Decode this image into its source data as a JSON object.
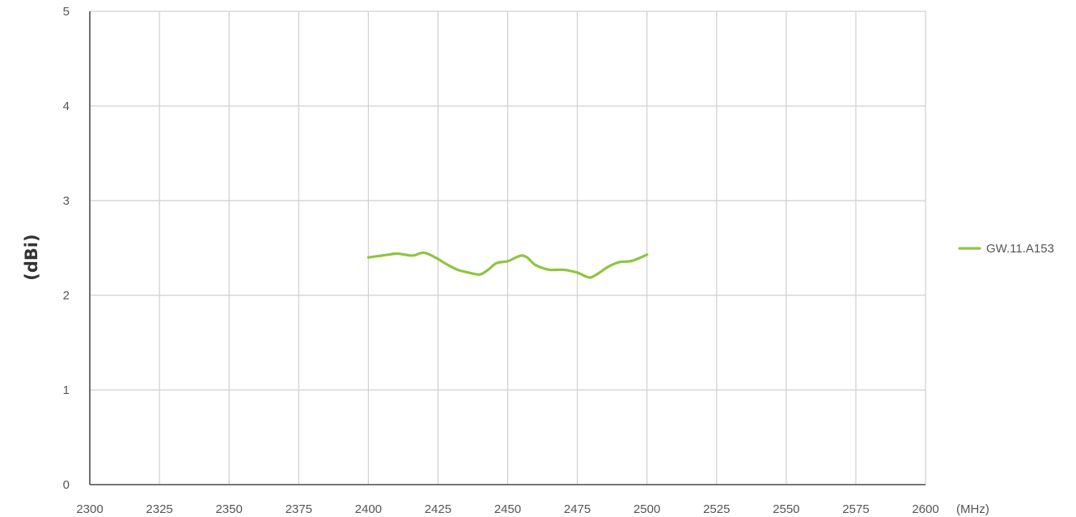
{
  "chart_data": {
    "type": "line",
    "title": "",
    "xlabel": "",
    "x_unit_label": "(MHz)",
    "ylabel": "(dBi)",
    "xlim": [
      2300,
      2600
    ],
    "ylim": [
      0,
      5
    ],
    "x_ticks": [
      2300,
      2325,
      2350,
      2375,
      2400,
      2425,
      2450,
      2475,
      2500,
      2525,
      2550,
      2575,
      2600
    ],
    "y_ticks": [
      0,
      1,
      2,
      3,
      4,
      5
    ],
    "grid": true,
    "legend_position": "right",
    "series": [
      {
        "name": "GW.11.A153",
        "color": "#8DC63F",
        "x": [
          2400,
          2405,
          2410,
          2413,
          2416,
          2420,
          2424,
          2428,
          2432,
          2436,
          2440,
          2443,
          2446,
          2450,
          2453,
          2455,
          2457,
          2460,
          2465,
          2470,
          2475,
          2478,
          2480,
          2483,
          2486,
          2490,
          2494,
          2497,
          2500
        ],
        "y": [
          2.4,
          2.42,
          2.44,
          2.43,
          2.42,
          2.45,
          2.4,
          2.33,
          2.27,
          2.24,
          2.22,
          2.27,
          2.34,
          2.36,
          2.4,
          2.42,
          2.4,
          2.32,
          2.27,
          2.27,
          2.24,
          2.2,
          2.19,
          2.24,
          2.3,
          2.35,
          2.36,
          2.39,
          2.43
        ]
      }
    ]
  }
}
